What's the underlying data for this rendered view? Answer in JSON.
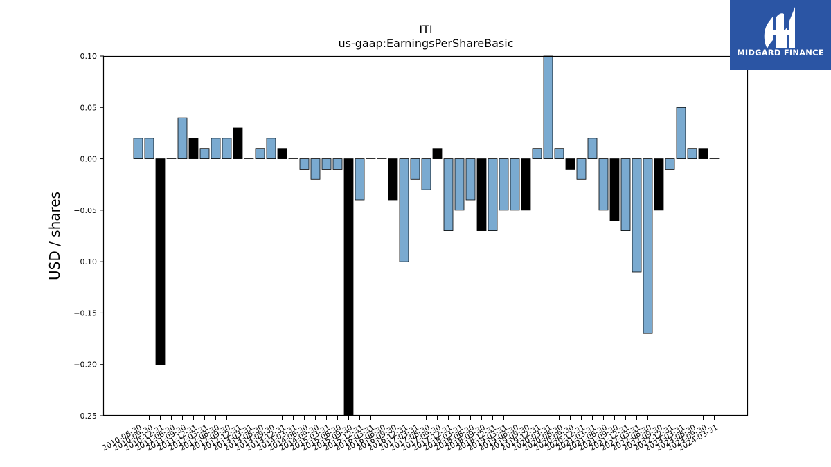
{
  "chart_data": {
    "type": "bar",
    "title": "ITI",
    "subtitle": "us-gaap:EarningsPerShareBasic",
    "xlabel": "",
    "ylabel": "USD / shares",
    "ylim": [
      -0.25,
      0.1
    ],
    "yticks": [
      "0.10",
      "0.05",
      "0.00",
      "−0.05",
      "−0.10",
      "−0.15",
      "−0.20",
      "−0.25"
    ],
    "categories": [
      "2010-06-30",
      "2010-09-30",
      "2010-12-31",
      "2011-06-30",
      "2011-09-30",
      "2011-12-31",
      "2012-03-31",
      "2012-06-30",
      "2012-09-30",
      "2012-12-31",
      "2013-03-31",
      "2013-06-30",
      "2013-09-30",
      "2013-12-31",
      "2014-03-31",
      "2014-06-30",
      "2014-09-30",
      "2015-03-31",
      "2015-06-30",
      "2015-09-30",
      "2015-12-31",
      "2016-03-31",
      "2016-06-30",
      "2016-09-30",
      "2016-12-31",
      "2017-03-31",
      "2017-06-30",
      "2017-09-30",
      "2017-12-31",
      "2018-03-31",
      "2018-06-30",
      "2018-09-30",
      "2018-12-31",
      "2019-03-31",
      "2019-06-30",
      "2019-09-30",
      "2019-12-31",
      "2020-03-31",
      "2020-06-30",
      "2020-09-30",
      "2020-12-31",
      "2021-03-31",
      "2021-06-30",
      "2021-09-30",
      "2021-12-31",
      "2022-03-31",
      "2022-06-30",
      "2022-09-30",
      "2022-12-31",
      "2023-03-31",
      "2023-06-30",
      "2023-09-30",
      "2024-03-31"
    ],
    "values": [
      0.02,
      0.02,
      -0.2,
      0.0,
      0.04,
      0.02,
      0.01,
      0.02,
      0.02,
      0.03,
      0.0,
      0.01,
      0.02,
      0.01,
      0.0,
      -0.01,
      -0.02,
      -0.01,
      -0.01,
      -0.25,
      -0.04,
      0.0,
      0.0,
      -0.04,
      -0.1,
      -0.02,
      -0.03,
      0.01,
      -0.07,
      -0.05,
      -0.04,
      -0.07,
      -0.07,
      -0.05,
      -0.05,
      -0.05,
      0.01,
      0.1,
      0.01,
      -0.01,
      -0.02,
      0.02,
      -0.05,
      -0.06,
      -0.07,
      -0.11,
      -0.17,
      -0.05,
      -0.01,
      0.05,
      0.01,
      0.01,
      0.0
    ],
    "highlight": [
      false,
      false,
      true,
      false,
      false,
      true,
      false,
      false,
      false,
      true,
      false,
      false,
      false,
      true,
      false,
      false,
      false,
      false,
      false,
      true,
      false,
      false,
      false,
      true,
      false,
      false,
      false,
      true,
      false,
      false,
      false,
      true,
      false,
      false,
      false,
      true,
      false,
      false,
      false,
      true,
      false,
      false,
      false,
      true,
      false,
      false,
      false,
      true,
      false,
      false,
      false,
      true,
      false
    ],
    "colors": {
      "bar": "#7aaad0",
      "highlight_bar": "#000000",
      "edge": "#000000"
    },
    "grid": false,
    "legend": "none"
  },
  "branding": {
    "logo_text": "MIDGARD FINANCE",
    "logo_bg": "#2b55a4"
  }
}
